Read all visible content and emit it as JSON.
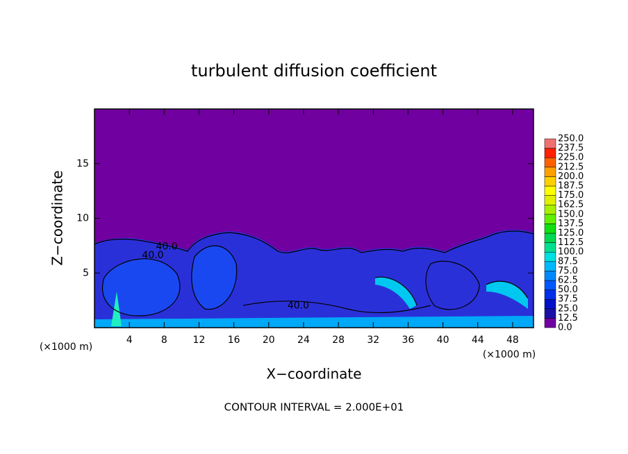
{
  "chart_data": {
    "type": "contour",
    "title": "turbulent diffusion coefficient",
    "xlabel": "X−coordinate",
    "ylabel": "Z−coordinate",
    "x_unit": "(×1000 m)",
    "footer": "CONTOUR INTERVAL = 2.000E+01",
    "xlim": [
      0,
      50.4
    ],
    "ylim": [
      0,
      20
    ],
    "xticks": [
      4,
      8,
      12,
      16,
      20,
      24,
      28,
      32,
      36,
      40,
      44,
      48
    ],
    "yticks": [
      5,
      10,
      15
    ],
    "background_color": "#7000a0",
    "annotations": [
      {
        "text": "40.0",
        "x": 6.7,
        "y": 6.6
      },
      {
        "text": "40.0",
        "x": 8.3,
        "y": 7.4
      },
      {
        "text": "40.0",
        "x": 23.4,
        "y": 2.0
      }
    ],
    "colorbar": {
      "levels": [
        {
          "value": 0,
          "label": "0.0"
        },
        {
          "value": 12.5,
          "label": "12.5"
        },
        {
          "value": 25,
          "label": "25.0"
        },
        {
          "value": 37.5,
          "label": "37.5"
        },
        {
          "value": 50,
          "label": "50.0"
        },
        {
          "value": 62.5,
          "label": "62.5"
        },
        {
          "value": 75,
          "label": "75.0"
        },
        {
          "value": 87.5,
          "label": "87.5"
        },
        {
          "value": 100,
          "label": "100.0"
        },
        {
          "value": 112.5,
          "label": "112.5"
        },
        {
          "value": 125,
          "label": "125.0"
        },
        {
          "value": 137.5,
          "label": "137.5"
        },
        {
          "value": 150,
          "label": "150.0"
        },
        {
          "value": 162.5,
          "label": "162.5"
        },
        {
          "value": 175,
          "label": "175.0"
        },
        {
          "value": 187.5,
          "label": "187.5"
        },
        {
          "value": 200,
          "label": "200.0"
        },
        {
          "value": 212.5,
          "label": "212.5"
        },
        {
          "value": 225,
          "label": "225.0"
        },
        {
          "value": 237.5,
          "label": "237.5"
        },
        {
          "value": 250,
          "label": "250.0"
        }
      ],
      "colors": [
        "#7000a0",
        "#1a10a8",
        "#0010c8",
        "#0030e8",
        "#0058ff",
        "#0088ff",
        "#00b8ff",
        "#00e0e0",
        "#00e090",
        "#00d850",
        "#10e010",
        "#60f000",
        "#a8f000",
        "#e0f000",
        "#ffff00",
        "#ffd000",
        "#ffa000",
        "#ff6000",
        "#ff2000",
        "#f07070"
      ]
    }
  }
}
